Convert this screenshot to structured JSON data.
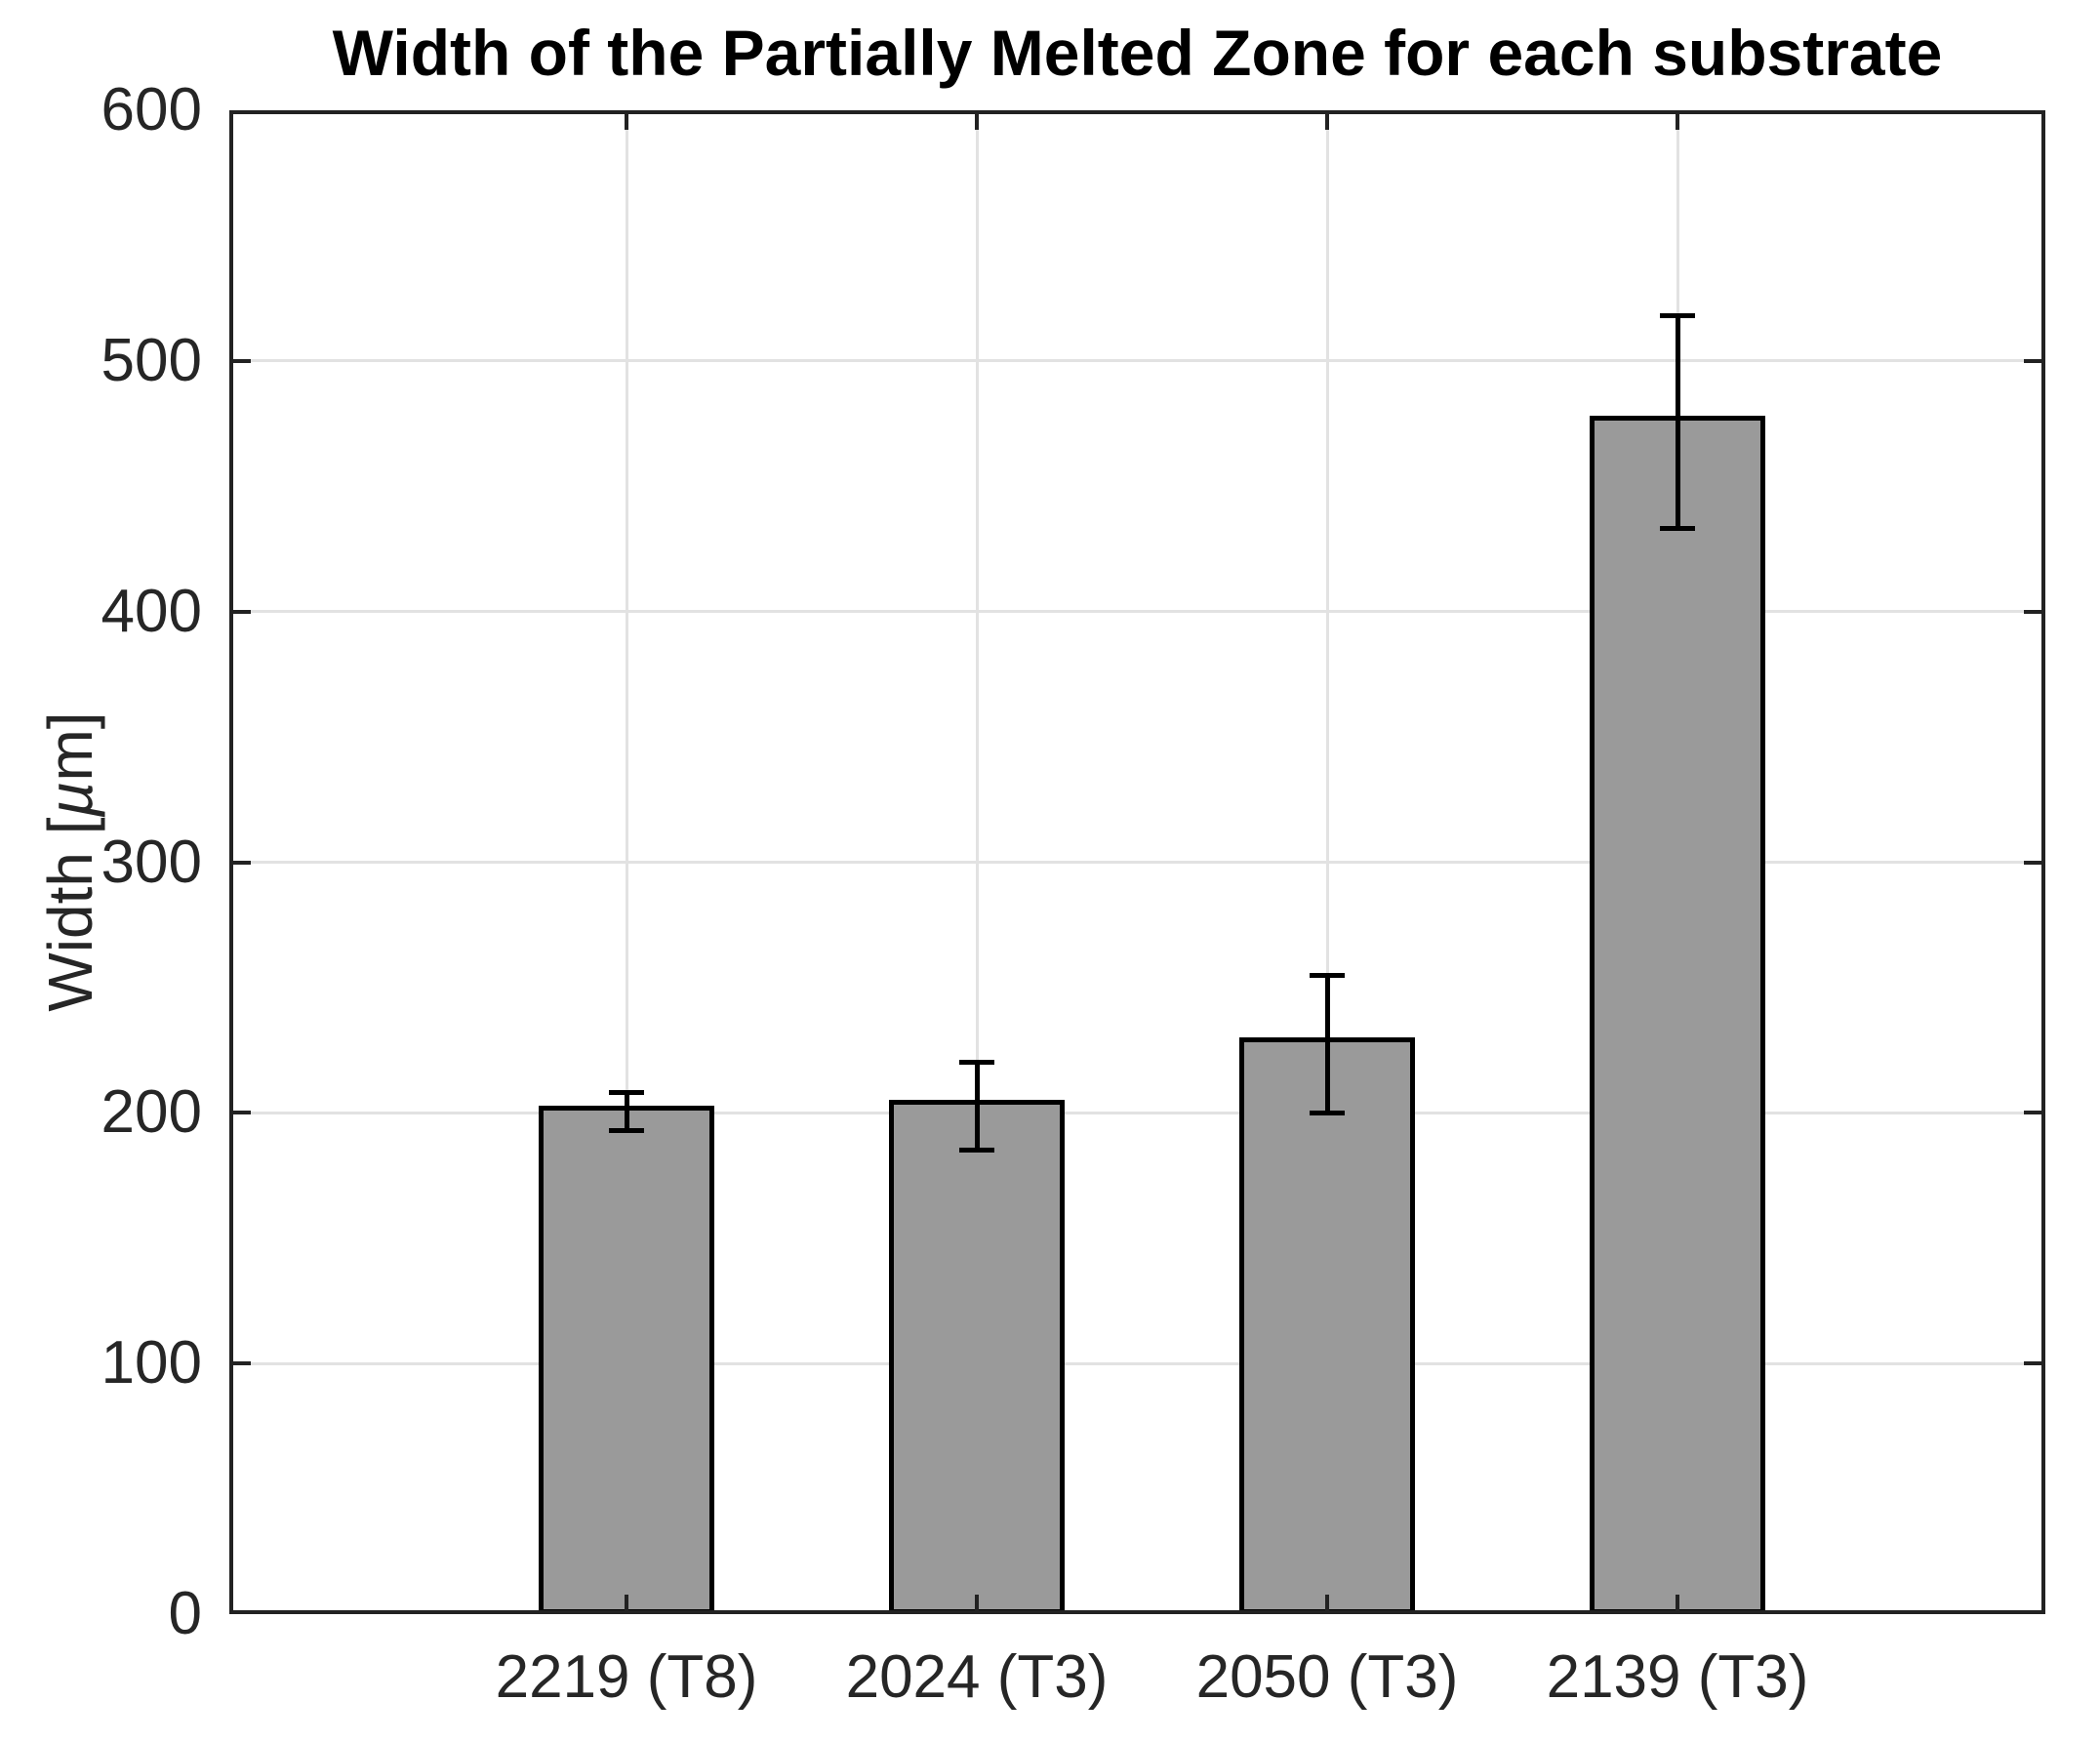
{
  "chart_data": {
    "type": "bar",
    "title": "Width of the Partially Melted Zone for each substrate",
    "ylabel": "Width [µm]",
    "ylabel_parts": {
      "prefix": "Width [",
      "mu": "µ",
      "suffix": "m]"
    },
    "xlabel": "",
    "categories": [
      "2219 (T8)",
      "2024 (T3)",
      "2050 (T3)",
      "2139 (T3)"
    ],
    "values": [
      203,
      205,
      230,
      478
    ],
    "errors": {
      "upper_caps": [
        208,
        220,
        255,
        518
      ],
      "lower_caps": [
        193,
        185,
        200,
        433
      ]
    },
    "ylim": [
      0,
      600
    ],
    "yticks": [
      0,
      100,
      200,
      300,
      400,
      500,
      600
    ],
    "ytick_labels": [
      "0",
      "100",
      "200",
      "300",
      "400",
      "500",
      "600"
    ],
    "grid": true,
    "legend": null,
    "bar_relative_width": 0.5,
    "colors": {
      "bar_fill": "#9A9A9A",
      "bar_edge": "#000000",
      "error_bar": "#000000",
      "grid": "#E2E2E2",
      "axis": "#222222",
      "tick_label": "#262626",
      "title": "#000000",
      "background": "#FFFFFF"
    }
  }
}
